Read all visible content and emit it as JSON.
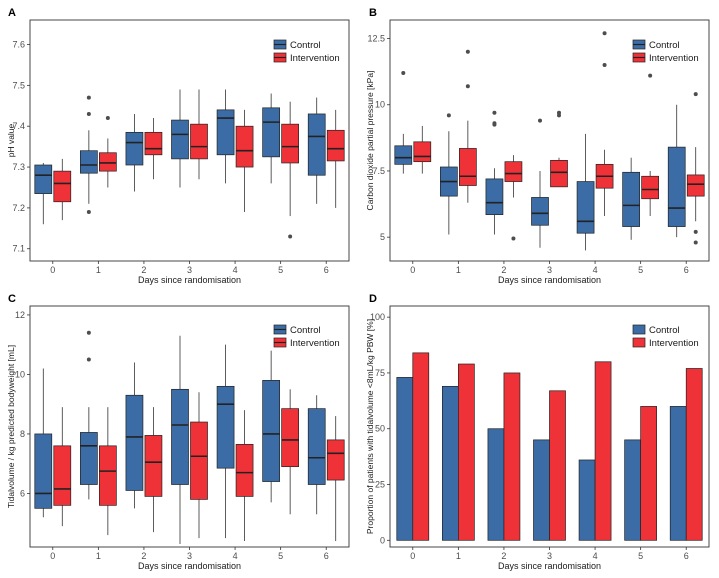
{
  "colors": {
    "control": "#3B6CA6",
    "intervention": "#EE3238",
    "axis": "#333333",
    "outlier": "#4d4d4d"
  },
  "chart_data": [
    {
      "panel": "A",
      "type": "box",
      "title": "",
      "xlabel": "Days since randomisation",
      "ylabel": "pH value",
      "ylim": [
        7.07,
        7.66
      ],
      "yticks": [
        7.1,
        7.2,
        7.3,
        7.4,
        7.5,
        7.6
      ],
      "ytick_labels": [
        "7.1",
        "7.2",
        "7.3",
        "7.4",
        "7.5",
        "7.6"
      ],
      "categories": [
        "0",
        "1",
        "2",
        "3",
        "4",
        "5",
        "6"
      ],
      "legend": [
        "Control",
        "Intervention"
      ],
      "series": [
        {
          "name": "Control",
          "boxes": [
            {
              "min": 7.16,
              "q1": 7.235,
              "median": 7.28,
              "q3": 7.305,
              "max": 7.31,
              "outliers": []
            },
            {
              "min": 7.21,
              "q1": 7.285,
              "median": 7.305,
              "q3": 7.34,
              "max": 7.39,
              "outliers": [
                7.47,
                7.43,
                7.19
              ]
            },
            {
              "min": 7.24,
              "q1": 7.305,
              "median": 7.36,
              "q3": 7.385,
              "max": 7.43,
              "outliers": []
            },
            {
              "min": 7.25,
              "q1": 7.32,
              "median": 7.38,
              "q3": 7.415,
              "max": 7.49,
              "outliers": []
            },
            {
              "min": 7.26,
              "q1": 7.33,
              "median": 7.42,
              "q3": 7.44,
              "max": 7.49,
              "outliers": []
            },
            {
              "min": 7.26,
              "q1": 7.325,
              "median": 7.41,
              "q3": 7.445,
              "max": 7.48,
              "outliers": []
            },
            {
              "min": 7.21,
              "q1": 7.28,
              "median": 7.375,
              "q3": 7.43,
              "max": 7.47,
              "outliers": []
            }
          ]
        },
        {
          "name": "Intervention",
          "boxes": [
            {
              "min": 7.17,
              "q1": 7.215,
              "median": 7.26,
              "q3": 7.29,
              "max": 7.32,
              "outliers": []
            },
            {
              "min": 7.25,
              "q1": 7.29,
              "median": 7.31,
              "q3": 7.335,
              "max": 7.37,
              "outliers": [
                7.42
              ]
            },
            {
              "min": 7.27,
              "q1": 7.33,
              "median": 7.345,
              "q3": 7.385,
              "max": 7.42,
              "outliers": []
            },
            {
              "min": 7.27,
              "q1": 7.32,
              "median": 7.35,
              "q3": 7.405,
              "max": 7.49,
              "outliers": []
            },
            {
              "min": 7.19,
              "q1": 7.3,
              "median": 7.34,
              "q3": 7.4,
              "max": 7.44,
              "outliers": []
            },
            {
              "min": 7.18,
              "q1": 7.31,
              "median": 7.35,
              "q3": 7.405,
              "max": 7.46,
              "outliers": [
                7.13
              ]
            },
            {
              "min": 7.2,
              "q1": 7.315,
              "median": 7.345,
              "q3": 7.39,
              "max": 7.44,
              "outliers": []
            }
          ]
        }
      ]
    },
    {
      "panel": "B",
      "type": "box",
      "title": "",
      "xlabel": "Days since randomisation",
      "ylabel": "Carbon dioxide partial pressure [kPa]",
      "ylim": [
        4.1,
        13.2
      ],
      "yticks": [
        5,
        7.5,
        10,
        12.5
      ],
      "ytick_labels": [
        "5",
        "7.5",
        "10",
        "12.5"
      ],
      "categories": [
        "0",
        "1",
        "2",
        "3",
        "4",
        "5",
        "6"
      ],
      "legend": [
        "Control",
        "Intervention"
      ],
      "series": [
        {
          "name": "Control",
          "boxes": [
            {
              "min": 7.4,
              "q1": 7.75,
              "median": 8.0,
              "q3": 8.45,
              "max": 8.9,
              "outliers": [
                11.2
              ]
            },
            {
              "min": 5.1,
              "q1": 6.55,
              "median": 7.1,
              "q3": 7.65,
              "max": 9.0,
              "outliers": [
                9.6
              ]
            },
            {
              "min": 5.1,
              "q1": 5.85,
              "median": 6.3,
              "q3": 7.2,
              "max": 7.6,
              "outliers": [
                9.7,
                9.3,
                9.25
              ]
            },
            {
              "min": 4.6,
              "q1": 5.45,
              "median": 5.9,
              "q3": 6.5,
              "max": 7.5,
              "outliers": [
                9.4
              ]
            },
            {
              "min": 4.5,
              "q1": 5.15,
              "median": 5.6,
              "q3": 7.1,
              "max": 8.9,
              "outliers": []
            },
            {
              "min": 4.9,
              "q1": 5.4,
              "median": 6.2,
              "q3": 7.45,
              "max": 8.0,
              "outliers": []
            },
            {
              "min": 5.0,
              "q1": 5.4,
              "median": 6.1,
              "q3": 8.4,
              "max": 10.0,
              "outliers": []
            }
          ]
        },
        {
          "name": "Intervention",
          "boxes": [
            {
              "min": 7.4,
              "q1": 7.85,
              "median": 8.05,
              "q3": 8.6,
              "max": 9.2,
              "outliers": []
            },
            {
              "min": 6.3,
              "q1": 6.95,
              "median": 7.3,
              "q3": 8.35,
              "max": 9.4,
              "outliers": [
                12.0,
                10.7
              ]
            },
            {
              "min": 6.5,
              "q1": 7.1,
              "median": 7.4,
              "q3": 7.85,
              "max": 8.1,
              "outliers": [
                4.95
              ]
            },
            {
              "min": 6.9,
              "q1": 6.9,
              "median": 7.45,
              "q3": 7.9,
              "max": 8.0,
              "outliers": [
                9.7,
                9.6
              ]
            },
            {
              "min": 5.8,
              "q1": 6.85,
              "median": 7.3,
              "q3": 7.75,
              "max": 8.3,
              "outliers": [
                12.7,
                11.5
              ]
            },
            {
              "min": 5.8,
              "q1": 6.45,
              "median": 6.8,
              "q3": 7.3,
              "max": 7.5,
              "outliers": [
                11.1
              ]
            },
            {
              "min": 5.6,
              "q1": 6.55,
              "median": 7.0,
              "q3": 7.35,
              "max": 8.4,
              "outliers": [
                10.4,
                5.2,
                4.8
              ]
            }
          ]
        }
      ]
    },
    {
      "panel": "C",
      "type": "box",
      "title": "",
      "xlabel": "Days since randomisation",
      "ylabel": "Tidalvolume / kg predicted bodyweight [mL]",
      "ylim": [
        4.2,
        12.3
      ],
      "yticks": [
        6,
        8,
        10,
        12
      ],
      "ytick_labels": [
        "6",
        "8",
        "10",
        "12"
      ],
      "categories": [
        "0",
        "1",
        "2",
        "3",
        "4",
        "5",
        "6"
      ],
      "legend": [
        "Control",
        "Intervention"
      ],
      "series": [
        {
          "name": "Control",
          "boxes": [
            {
              "min": 5.2,
              "q1": 5.5,
              "median": 6.0,
              "q3": 8.0,
              "max": 10.2,
              "outliers": []
            },
            {
              "min": 5.8,
              "q1": 6.3,
              "median": 7.6,
              "q3": 8.05,
              "max": 8.9,
              "outliers": [
                11.4,
                10.5
              ]
            },
            {
              "min": 5.5,
              "q1": 6.1,
              "median": 7.9,
              "q3": 9.3,
              "max": 10.4,
              "outliers": []
            },
            {
              "min": 4.3,
              "q1": 6.3,
              "median": 8.3,
              "q3": 9.5,
              "max": 11.3,
              "outliers": []
            },
            {
              "min": 4.5,
              "q1": 6.85,
              "median": 9.0,
              "q3": 9.6,
              "max": 11.0,
              "outliers": []
            },
            {
              "min": 5.7,
              "q1": 6.4,
              "median": 8.0,
              "q3": 9.8,
              "max": 10.8,
              "outliers": []
            },
            {
              "min": 5.3,
              "q1": 6.3,
              "median": 7.2,
              "q3": 8.85,
              "max": 9.3,
              "outliers": []
            }
          ]
        },
        {
          "name": "Intervention",
          "boxes": [
            {
              "min": 4.9,
              "q1": 5.6,
              "median": 6.15,
              "q3": 7.6,
              "max": 8.9,
              "outliers": []
            },
            {
              "min": 4.6,
              "q1": 5.6,
              "median": 6.75,
              "q3": 7.6,
              "max": 8.9,
              "outliers": []
            },
            {
              "min": 4.7,
              "q1": 5.9,
              "median": 7.05,
              "q3": 7.95,
              "max": 8.9,
              "outliers": []
            },
            {
              "min": 4.5,
              "q1": 5.8,
              "median": 7.25,
              "q3": 8.4,
              "max": 9.4,
              "outliers": []
            },
            {
              "min": 4.4,
              "q1": 5.9,
              "median": 6.7,
              "q3": 7.65,
              "max": 8.8,
              "outliers": []
            },
            {
              "min": 5.3,
              "q1": 6.9,
              "median": 7.8,
              "q3": 8.85,
              "max": 9.5,
              "outliers": []
            },
            {
              "min": 4.4,
              "q1": 6.45,
              "median": 7.35,
              "q3": 7.8,
              "max": 8.6,
              "outliers": []
            }
          ]
        }
      ]
    },
    {
      "panel": "D",
      "type": "bar",
      "title": "",
      "xlabel": "Days since randomisation",
      "ylabel": "Proportion of patients with tidalvolume <8mL/kg PBW [%]",
      "ylim": [
        -3,
        105
      ],
      "yticks": [
        0,
        25,
        50,
        75,
        100
      ],
      "ytick_labels": [
        "0",
        "25",
        "50",
        "75",
        "100"
      ],
      "categories": [
        "0",
        "1",
        "2",
        "3",
        "4",
        "5",
        "6"
      ],
      "legend": [
        "Control",
        "Intervention"
      ],
      "series": [
        {
          "name": "Control",
          "values": [
            73,
            69,
            50,
            45,
            36,
            45,
            60
          ]
        },
        {
          "name": "Intervention",
          "values": [
            84,
            79,
            75,
            67,
            80,
            60,
            77
          ]
        }
      ]
    }
  ]
}
